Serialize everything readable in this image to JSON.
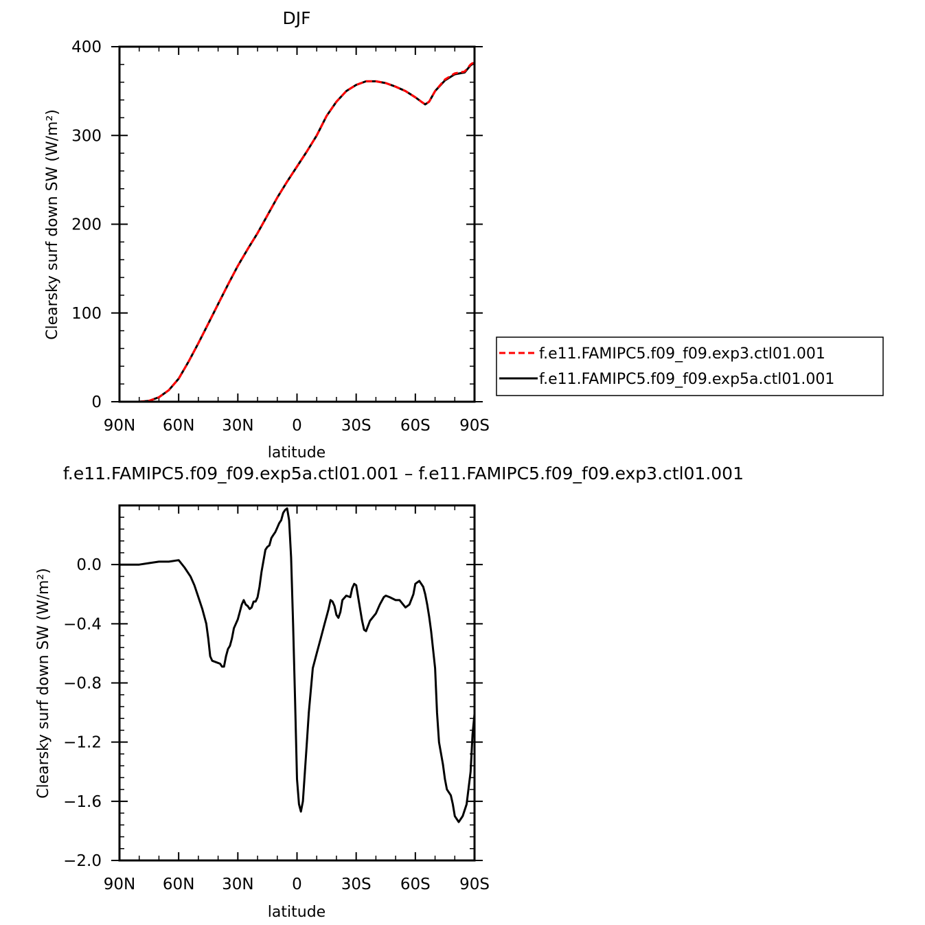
{
  "chart_data": [
    {
      "type": "line",
      "title": "DJF",
      "xlabel": "latitude",
      "ylabel": "Clearsky surf down SW (W/m²)",
      "xlim": [
        90,
        -90
      ],
      "ylim": [
        0,
        400
      ],
      "xticks": [
        90,
        60,
        30,
        0,
        -30,
        -60,
        -90
      ],
      "xtick_labels": [
        "90N",
        "60N",
        "30N",
        "0",
        "30S",
        "60S",
        "90S"
      ],
      "yticks": [
        0,
        100,
        200,
        300,
        400
      ],
      "ytick_labels": [
        "0",
        "100",
        "200",
        "300",
        "400"
      ],
      "legend_position": "right",
      "series": [
        {
          "name": "f.e11.FAMIPC5.f09_f09.exp3.ctl01.001",
          "color": "#ff0000",
          "dash": "dashed",
          "x": [
            90,
            85,
            80,
            75,
            70,
            65,
            60,
            55,
            50,
            45,
            40,
            35,
            30,
            25,
            20,
            15,
            10,
            5,
            0,
            -5,
            -10,
            -15,
            -20,
            -25,
            -30,
            -35,
            -40,
            -45,
            -50,
            -55,
            -60,
            -63,
            -65,
            -67,
            -70,
            -75,
            -80,
            -85,
            -88,
            -90
          ],
          "y": [
            0,
            0,
            0,
            1,
            5,
            13,
            26,
            45,
            66,
            88,
            110,
            132,
            153,
            172,
            190,
            210,
            230,
            248,
            265,
            282,
            300,
            322,
            338,
            350,
            357,
            361,
            361,
            359,
            355,
            350,
            343,
            338,
            335,
            338,
            350,
            363,
            370,
            372,
            380,
            383
          ]
        },
        {
          "name": "f.e11.FAMIPC5.f09_f09.exp5a.ctl01.001",
          "color": "#000000",
          "dash": "solid",
          "x": [
            90,
            85,
            80,
            75,
            70,
            65,
            60,
            55,
            50,
            45,
            40,
            35,
            30,
            25,
            20,
            15,
            10,
            5,
            0,
            -5,
            -10,
            -15,
            -20,
            -25,
            -30,
            -35,
            -40,
            -45,
            -50,
            -55,
            -60,
            -63,
            -65,
            -67,
            -70,
            -75,
            -80,
            -85,
            -88,
            -90
          ],
          "y": [
            0,
            0,
            0,
            1,
            5,
            13,
            26,
            45,
            66,
            88,
            110,
            132,
            153,
            172,
            190,
            210,
            230,
            248,
            265,
            282,
            300,
            322,
            338,
            350,
            357,
            361,
            361,
            359,
            355,
            350,
            343,
            338,
            335,
            338,
            350,
            362,
            369,
            371,
            379,
            382
          ]
        }
      ]
    },
    {
      "type": "line",
      "title": "f.e11.FAMIPC5.f09_f09.exp5a.ctl01.001  –  f.e11.FAMIPC5.f09_f09.exp3.ctl01.001",
      "xlabel": "latitude",
      "ylabel": "Clearsky surf down SW (W/m²)",
      "xlim": [
        90,
        -90
      ],
      "ylim": [
        -2.0,
        0.4
      ],
      "xticks": [
        90,
        60,
        30,
        0,
        -30,
        -60,
        -90
      ],
      "xtick_labels": [
        "90N",
        "60N",
        "30N",
        "0",
        "30S",
        "60S",
        "90S"
      ],
      "yticks": [
        0.0,
        -0.4,
        -0.8,
        -1.2,
        -1.6,
        -2.0
      ],
      "ytick_labels": [
        "0.0",
        "−0.4",
        "−0.8",
        "−1.2",
        "−1.6",
        "−2.0"
      ],
      "series": [
        {
          "name": "",
          "color": "#000000",
          "dash": "solid",
          "x": [
            90,
            80,
            75,
            70,
            65,
            60,
            57,
            54,
            52,
            50,
            48,
            46,
            45,
            44,
            43,
            41,
            39,
            38,
            37,
            36,
            35,
            34,
            33,
            32,
            30,
            29,
            28,
            27,
            26,
            25,
            24,
            23,
            22,
            21,
            20,
            19,
            18,
            16,
            15,
            14,
            13,
            12,
            11,
            10,
            9,
            8,
            7,
            6,
            5,
            4,
            3,
            2,
            1,
            0,
            -1,
            -2,
            -3,
            -4,
            -5,
            -6,
            -7,
            -8,
            -10,
            -12,
            -14,
            -15,
            -16,
            -17,
            -18,
            -19,
            -20,
            -21,
            -22,
            -23,
            -25,
            -27,
            -28,
            -29,
            -30,
            -32,
            -33,
            -34,
            -35,
            -37,
            -40,
            -42,
            -44,
            -45,
            -47,
            -50,
            -52,
            -55,
            -57,
            -59,
            -60,
            -62,
            -64,
            -65,
            -66,
            -67,
            -68,
            -70,
            -71,
            -72,
            -74,
            -75,
            -76,
            -78,
            -79,
            -80,
            -82,
            -84,
            -86,
            -88,
            -89,
            -90
          ],
          "y": [
            0.0,
            0.0,
            0.01,
            0.02,
            0.02,
            0.03,
            -0.02,
            -0.08,
            -0.14,
            -0.22,
            -0.3,
            -0.4,
            -0.5,
            -0.62,
            -0.65,
            -0.66,
            -0.67,
            -0.69,
            -0.69,
            -0.62,
            -0.57,
            -0.55,
            -0.5,
            -0.43,
            -0.37,
            -0.32,
            -0.27,
            -0.24,
            -0.27,
            -0.28,
            -0.3,
            -0.29,
            -0.25,
            -0.25,
            -0.22,
            -0.15,
            -0.05,
            0.1,
            0.12,
            0.13,
            0.18,
            0.2,
            0.22,
            0.25,
            0.28,
            0.3,
            0.35,
            0.37,
            0.38,
            0.3,
            0.05,
            -0.4,
            -0.9,
            -1.45,
            -1.62,
            -1.67,
            -1.6,
            -1.4,
            -1.2,
            -1.0,
            -0.85,
            -0.7,
            -0.6,
            -0.5,
            -0.4,
            -0.35,
            -0.3,
            -0.24,
            -0.25,
            -0.28,
            -0.34,
            -0.36,
            -0.32,
            -0.24,
            -0.21,
            -0.22,
            -0.16,
            -0.13,
            -0.14,
            -0.3,
            -0.38,
            -0.44,
            -0.45,
            -0.38,
            -0.33,
            -0.27,
            -0.22,
            -0.21,
            -0.22,
            -0.24,
            -0.24,
            -0.29,
            -0.27,
            -0.2,
            -0.13,
            -0.11,
            -0.15,
            -0.2,
            -0.27,
            -0.35,
            -0.45,
            -0.7,
            -1.0,
            -1.2,
            -1.35,
            -1.45,
            -1.52,
            -1.56,
            -1.62,
            -1.7,
            -1.74,
            -1.7,
            -1.62,
            -1.4,
            -1.15,
            -1.01
          ]
        }
      ]
    }
  ]
}
